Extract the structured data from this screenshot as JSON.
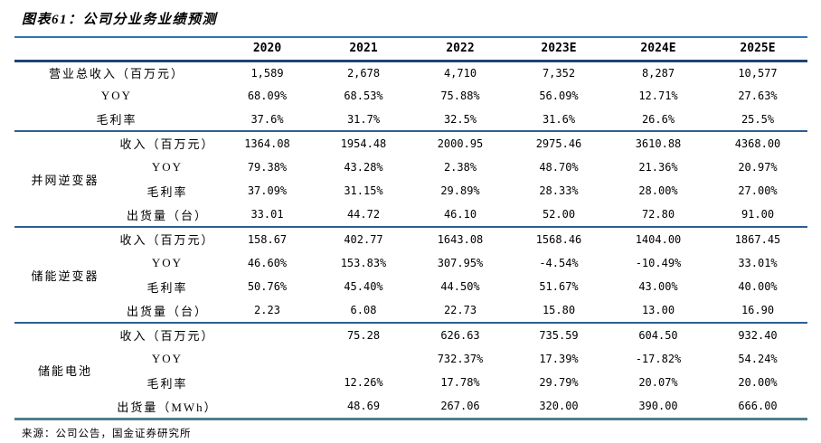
{
  "figure": {
    "title": "图表61：公司分业务业绩预测",
    "source": "来源：公司公告，国金证券研究所"
  },
  "colors": {
    "title_rule": "#2e75b6",
    "header_rule": "#1d4672",
    "section_rule": "#2d5f93",
    "bottom_rule": "#4d808d",
    "text": "#000000",
    "background": "#ffffff"
  },
  "table": {
    "year_headers": [
      "2020",
      "2021",
      "2022",
      "2023E",
      "2024E",
      "2025E"
    ],
    "sections": [
      {
        "group": "",
        "rows": [
          {
            "label": "营业总收入（百万元）",
            "values": [
              "1,589",
              "2,678",
              "4,710",
              "7,352",
              "8,287",
              "10,577"
            ]
          },
          {
            "label": "YOY",
            "values": [
              "68.09%",
              "68.53%",
              "75.88%",
              "56.09%",
              "12.71%",
              "27.63%"
            ]
          },
          {
            "label": "毛利率",
            "values": [
              "37.6%",
              "31.7%",
              "32.5%",
              "31.6%",
              "26.6%",
              "25.5%"
            ]
          }
        ]
      },
      {
        "group": "并网逆变器",
        "rows": [
          {
            "label": "收入（百万元）",
            "values": [
              "1364.08",
              "1954.48",
              "2000.95",
              "2975.46",
              "3610.88",
              "4368.00"
            ]
          },
          {
            "label": "YOY",
            "values": [
              "79.38%",
              "43.28%",
              "2.38%",
              "48.70%",
              "21.36%",
              "20.97%"
            ]
          },
          {
            "label": "毛利率",
            "values": [
              "37.09%",
              "31.15%",
              "29.89%",
              "28.33%",
              "28.00%",
              "27.00%"
            ]
          },
          {
            "label": "出货量（台）",
            "values": [
              "33.01",
              "44.72",
              "46.10",
              "52.00",
              "72.80",
              "91.00"
            ]
          }
        ]
      },
      {
        "group": "储能逆变器",
        "rows": [
          {
            "label": "收入（百万元）",
            "values": [
              "158.67",
              "402.77",
              "1643.08",
              "1568.46",
              "1404.00",
              "1867.45"
            ]
          },
          {
            "label": "YOY",
            "values": [
              "46.60%",
              "153.83%",
              "307.95%",
              "-4.54%",
              "-10.49%",
              "33.01%"
            ]
          },
          {
            "label": "毛利率",
            "values": [
              "50.76%",
              "45.40%",
              "44.50%",
              "51.67%",
              "43.00%",
              "40.00%"
            ]
          },
          {
            "label": "出货量（台）",
            "values": [
              "2.23",
              "6.08",
              "22.73",
              "15.80",
              "13.00",
              "16.90"
            ]
          }
        ]
      },
      {
        "group": "储能电池",
        "rows": [
          {
            "label": "收入（百万元）",
            "values": [
              "",
              "75.28",
              "626.63",
              "735.59",
              "604.50",
              "932.40"
            ]
          },
          {
            "label": "YOY",
            "values": [
              "",
              "",
              "732.37%",
              "17.39%",
              "-17.82%",
              "54.24%"
            ]
          },
          {
            "label": "毛利率",
            "values": [
              "",
              "12.26%",
              "17.78%",
              "29.79%",
              "20.07%",
              "20.00%"
            ]
          },
          {
            "label": "出货量（MWh）",
            "values": [
              "",
              "48.69",
              "267.06",
              "320.00",
              "390.00",
              "666.00"
            ]
          }
        ]
      }
    ]
  }
}
